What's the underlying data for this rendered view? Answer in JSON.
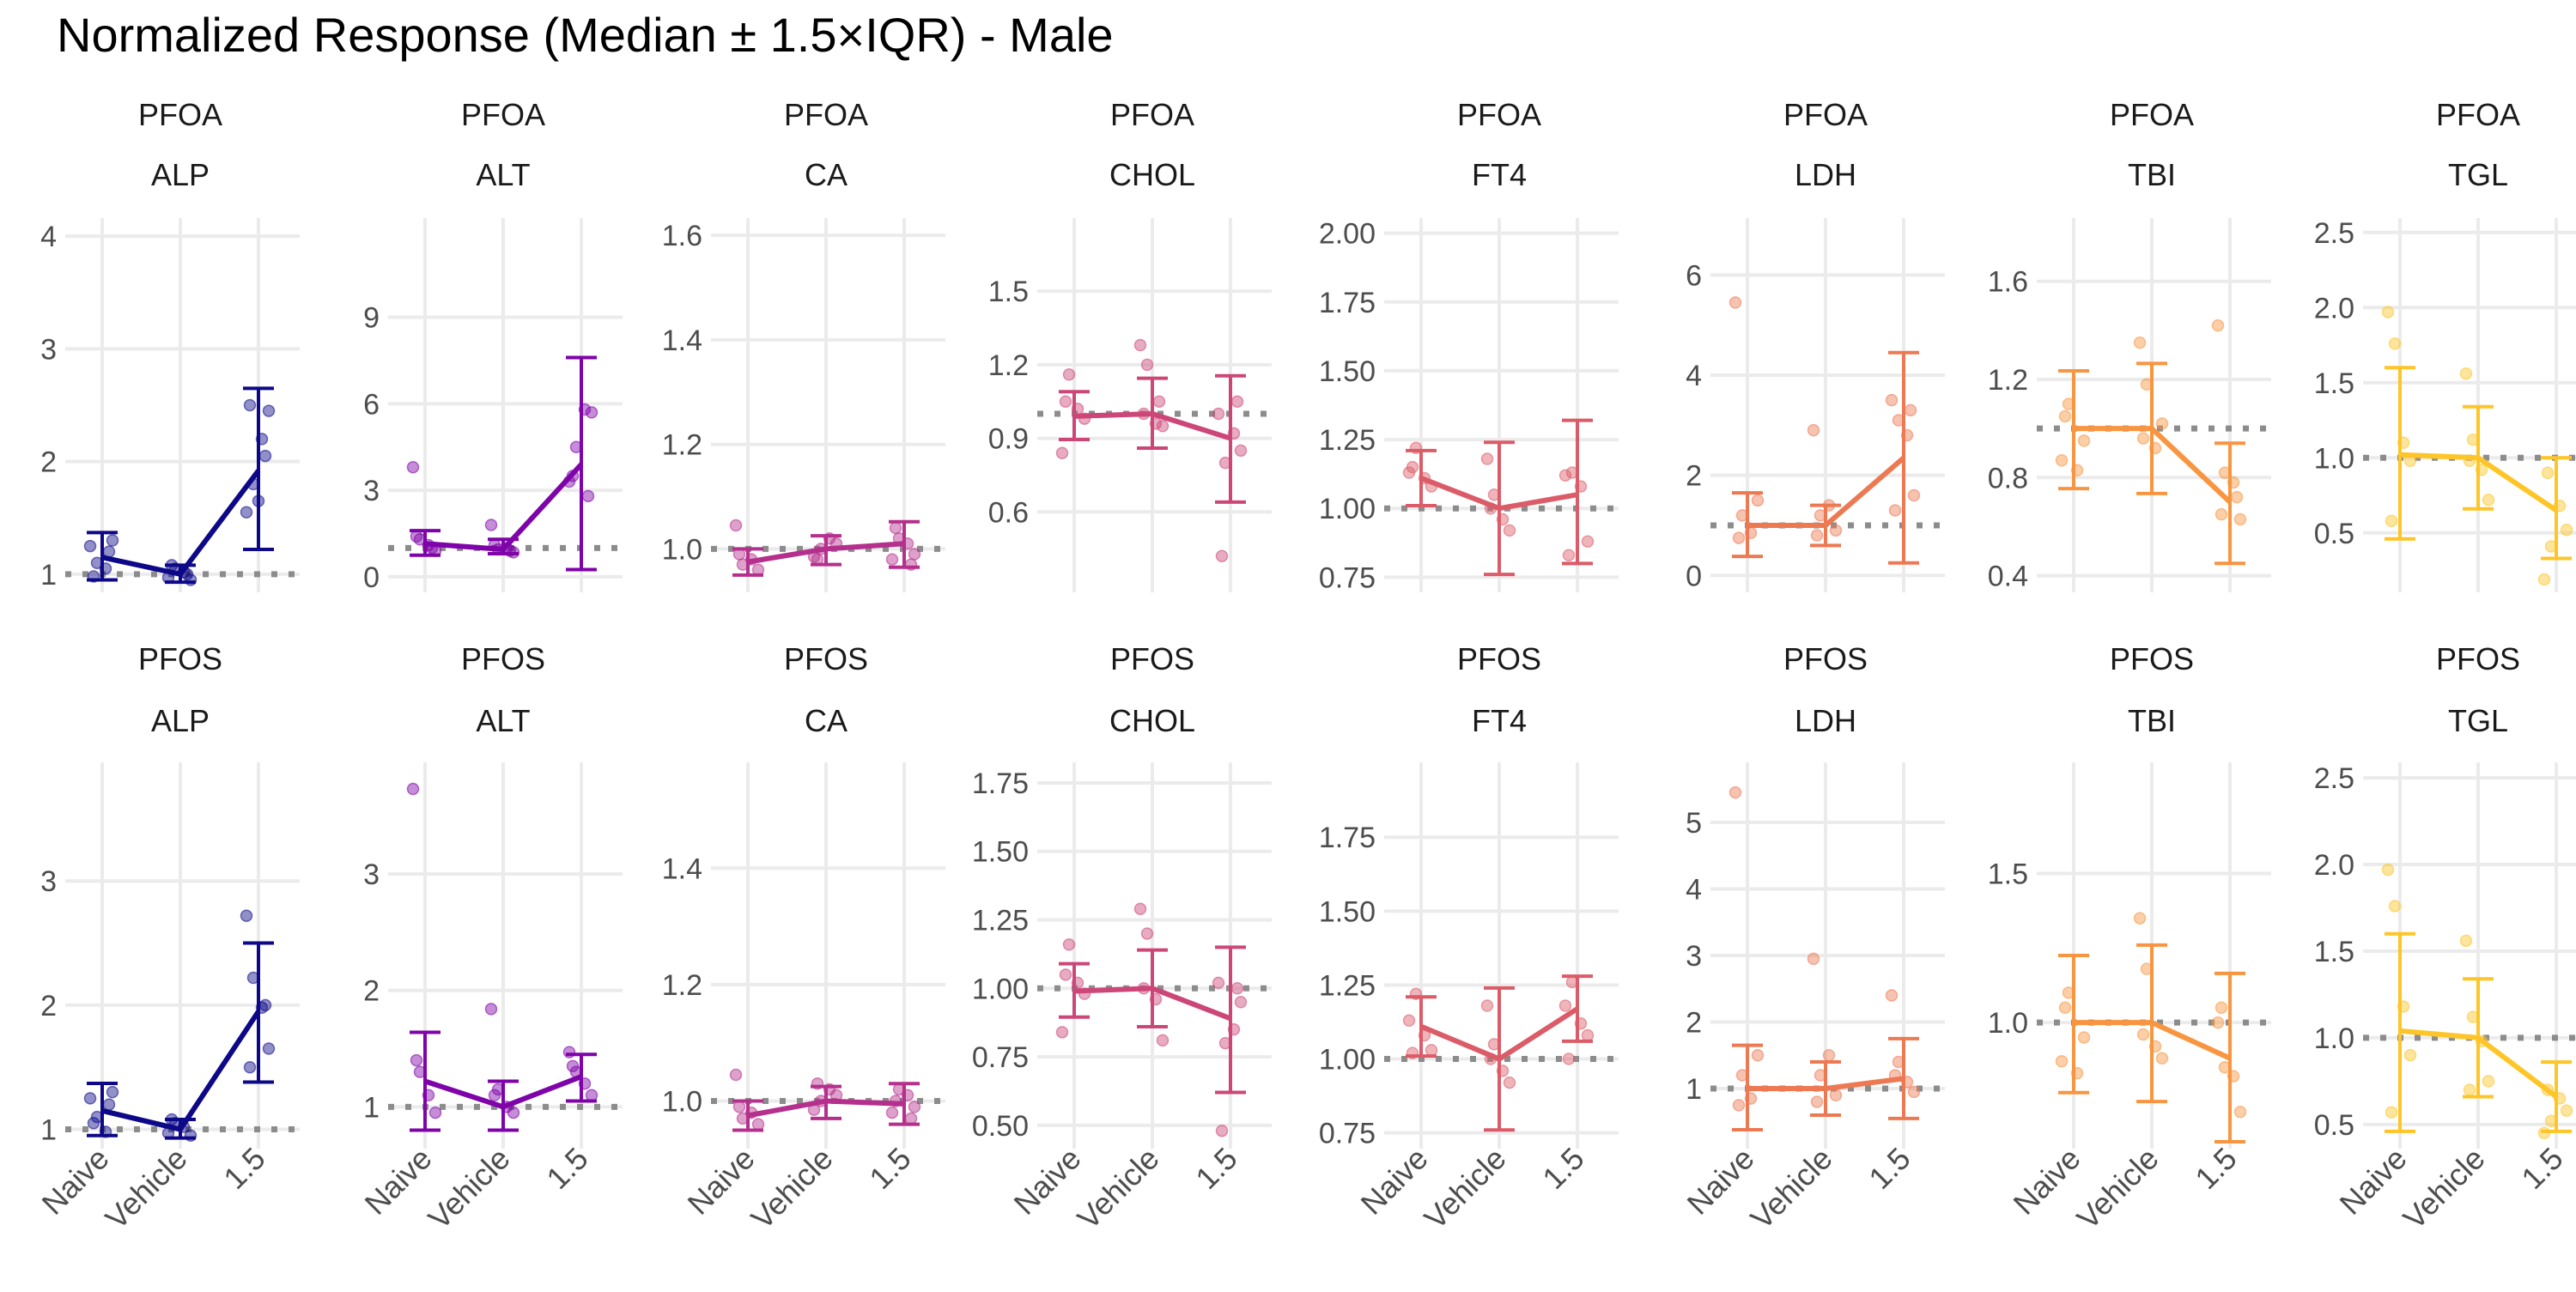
{
  "chart_data": {
    "type": "line",
    "title": "Normalized Response (Median ± 1.5×IQR) - Male",
    "x_categories": [
      "Naive",
      "Vehicle",
      "1.5"
    ],
    "reference_line": 1,
    "facet_rows": [
      "PFOA",
      "PFOS"
    ],
    "facet_cols": [
      "ALP",
      "ALT",
      "CA",
      "CHOL",
      "FT4",
      "LDH",
      "TBI",
      "TGL"
    ],
    "panels": [
      {
        "compound": "PFOA",
        "endpoint": "ALP",
        "color": "#0d0887",
        "ylim": [
          0.9,
          4.1
        ],
        "ticks": [
          1,
          2,
          3,
          4
        ],
        "tick_labels": [
          "1",
          "2",
          "3",
          "4"
        ],
        "median": [
          1.15,
          1.0,
          1.92
        ],
        "lower": [
          0.95,
          0.93,
          1.22
        ],
        "upper": [
          1.37,
          1.08,
          2.65
        ],
        "points": [
          [
            1.25,
            1.1,
            1.05,
            1.3,
            0.98,
            1.2
          ],
          [
            0.97,
            1.05,
            1.02,
            0.95,
            1.08,
            1.0
          ],
          [
            1.55,
            1.8,
            2.2,
            2.45,
            2.5,
            2.05,
            1.65
          ]
        ]
      },
      {
        "compound": "PFOA",
        "endpoint": "ALT",
        "color": "#7e03a8",
        "ylim": [
          -0.3,
          12.2
        ],
        "ticks": [
          0,
          3,
          6,
          9
        ],
        "tick_labels": [
          "0",
          "3",
          "6",
          "9"
        ],
        "median": [
          1.15,
          0.95,
          3.9
        ],
        "lower": [
          0.75,
          0.8,
          0.25
        ],
        "upper": [
          1.6,
          1.3,
          7.6
        ],
        "points": [
          [
            3.8,
            1.3,
            1.1,
            0.9,
            1.4,
            1.0
          ],
          [
            1.8,
            0.95,
            1.0,
            0.85,
            1.1,
            0.9
          ],
          [
            3.3,
            4.5,
            5.8,
            5.7,
            3.5,
            2.8
          ]
        ]
      },
      {
        "compound": "PFOA",
        "endpoint": "CA",
        "color": "#b52f8c",
        "ylim": [
          0.93,
          1.62
        ],
        "ticks": [
          1.0,
          1.2,
          1.4,
          1.6
        ],
        "tick_labels": [
          "1.0",
          "1.2",
          "1.4",
          "1.6"
        ],
        "median": [
          0.975,
          1.0,
          1.01
        ],
        "lower": [
          0.95,
          0.97,
          0.965
        ],
        "upper": [
          1.0,
          1.025,
          1.052
        ],
        "points": [
          [
            1.045,
            0.97,
            0.98,
            0.96,
            0.99
          ],
          [
            0.985,
            1.0,
            1.02,
            1.01,
            0.98
          ],
          [
            0.98,
            1.02,
            1.01,
            0.99,
            1.04,
            0.97
          ]
        ]
      },
      {
        "compound": "PFOA",
        "endpoint": "CHOL",
        "color": "#cc4778",
        "ylim": [
          0.3,
          1.77
        ],
        "ticks": [
          0.6,
          0.9,
          1.2,
          1.5
        ],
        "tick_labels": [
          "0.6",
          "0.9",
          "1.2",
          "1.5"
        ],
        "median": [
          0.99,
          1.0,
          0.9
        ],
        "lower": [
          0.895,
          0.86,
          0.64
        ],
        "upper": [
          1.09,
          1.145,
          1.155
        ],
        "points": [
          [
            0.84,
            1.16,
            1.02,
            0.98,
            1.05
          ],
          [
            1.28,
            1.2,
            0.96,
            0.95,
            1.0,
            1.05
          ],
          [
            1.0,
            0.8,
            0.92,
            0.85,
            0.42,
            1.05
          ]
        ]
      },
      {
        "compound": "PFOA",
        "endpoint": "FT4",
        "color": "#db5c68",
        "ylim": [
          0.72,
          2.03
        ],
        "ticks": [
          0.75,
          1.0,
          1.25,
          1.5,
          1.75,
          2.0
        ],
        "tick_labels": [
          "0.75",
          "1.00",
          "1.25",
          "1.50",
          "1.75",
          "2.00"
        ],
        "median": [
          1.11,
          1.0,
          1.05
        ],
        "lower": [
          1.01,
          0.76,
          0.8
        ],
        "upper": [
          1.21,
          1.24,
          1.32
        ],
        "points": [
          [
            1.13,
            1.22,
            1.11,
            1.08,
            1.15
          ],
          [
            1.18,
            1.05,
            0.96,
            0.92,
            1.0
          ],
          [
            1.12,
            1.13,
            1.08,
            0.88,
            0.83
          ]
        ]
      },
      {
        "compound": "PFOA",
        "endpoint": "LDH",
        "color": "#ed7953",
        "ylim": [
          -0.2,
          7.0
        ],
        "ticks": [
          0,
          2,
          4,
          6
        ],
        "tick_labels": [
          "0",
          "2",
          "4",
          "6"
        ],
        "median": [
          1.0,
          1.0,
          2.35
        ],
        "lower": [
          0.38,
          0.6,
          0.25
        ],
        "upper": [
          1.65,
          1.4,
          4.45
        ],
        "points": [
          [
            5.45,
            1.2,
            0.85,
            1.5,
            0.75
          ],
          [
            2.9,
            1.2,
            1.4,
            0.9,
            0.8
          ],
          [
            3.5,
            3.1,
            2.8,
            1.6,
            1.3,
            3.3
          ]
        ]
      },
      {
        "compound": "PFOA",
        "endpoint": "TBI",
        "color": "#f89540",
        "ylim": [
          0.36,
          1.83
        ],
        "ticks": [
          0.4,
          0.8,
          1.2,
          1.6
        ],
        "tick_labels": [
          "0.4",
          "0.8",
          "1.2",
          "1.6"
        ],
        "median": [
          1.0,
          1.0,
          0.7
        ],
        "lower": [
          0.755,
          0.735,
          0.45
        ],
        "upper": [
          1.235,
          1.265,
          0.94
        ],
        "points": [
          [
            0.87,
            1.1,
            0.83,
            0.95,
            1.05
          ],
          [
            1.35,
            1.18,
            0.92,
            1.02,
            0.96
          ],
          [
            1.42,
            0.82,
            0.78,
            0.63,
            0.65,
            0.72
          ]
        ]
      },
      {
        "compound": "PFOA",
        "endpoint": "TGL",
        "color": "#fdc527",
        "ylim": [
          0.15,
          2.55
        ],
        "ticks": [
          0.5,
          1.0,
          1.5,
          2.0,
          2.5
        ],
        "tick_labels": [
          "0.5",
          "1.0",
          "1.5",
          "2.0",
          "2.5"
        ],
        "median": [
          1.02,
          1.0,
          0.65
        ],
        "lower": [
          0.46,
          0.66,
          0.33
        ],
        "upper": [
          1.6,
          1.34,
          1.0
        ],
        "points": [
          [
            1.97,
            1.76,
            1.1,
            0.98,
            0.58
          ],
          [
            1.56,
            1.12,
            0.92,
            0.72,
            0.98
          ],
          [
            0.19,
            0.41,
            0.68,
            0.52,
            0.9
          ]
        ]
      },
      {
        "compound": "PFOS",
        "endpoint": "ALP",
        "color": "#0d0887",
        "ylim": [
          0.9,
          3.9
        ],
        "ticks": [
          1,
          2,
          3
        ],
        "tick_labels": [
          "1",
          "2",
          "3"
        ],
        "median": [
          1.15,
          1.0,
          1.95
        ],
        "lower": [
          0.95,
          0.93,
          1.38
        ],
        "upper": [
          1.37,
          1.08,
          2.5
        ],
        "points": [
          [
            1.25,
            1.1,
            0.98,
            1.3,
            1.05,
            1.2
          ],
          [
            0.97,
            1.05,
            1.02,
            0.95,
            1.08
          ],
          [
            2.72,
            2.22,
            1.98,
            1.65,
            1.5,
            2.0
          ]
        ]
      },
      {
        "compound": "PFOS",
        "endpoint": "ALT",
        "color": "#7e03a8",
        "ylim": [
          0.7,
          3.9
        ],
        "ticks": [
          1,
          2,
          3
        ],
        "tick_labels": [
          "1",
          "2",
          "3"
        ],
        "median": [
          1.22,
          1.0,
          1.26
        ],
        "lower": [
          0.8,
          0.8,
          1.05
        ],
        "upper": [
          1.64,
          1.22,
          1.45
        ],
        "points": [
          [
            3.73,
            1.3,
            1.1,
            0.95,
            1.4
          ],
          [
            1.84,
            1.15,
            1.0,
            0.95,
            1.1
          ],
          [
            1.47,
            1.3,
            1.2,
            1.1,
            1.35
          ]
        ]
      },
      {
        "compound": "PFOS",
        "endpoint": "CA",
        "color": "#b52f8c",
        "ylim": [
          0.93,
          1.57
        ],
        "ticks": [
          1.0,
          1.2,
          1.4
        ],
        "tick_labels": [
          "1.0",
          "1.2",
          "1.4"
        ],
        "median": [
          0.975,
          1.0,
          0.995
        ],
        "lower": [
          0.95,
          0.97,
          0.96
        ],
        "upper": [
          1.0,
          1.025,
          1.03
        ],
        "points": [
          [
            1.045,
            0.97,
            0.98,
            0.96,
            0.99
          ],
          [
            0.985,
            1.0,
            1.02,
            1.01,
            1.03
          ],
          [
            0.98,
            1.02,
            1.01,
            0.99,
            1.0,
            0.97
          ]
        ]
      },
      {
        "compound": "PFOS",
        "endpoint": "CHOL",
        "color": "#cc4778",
        "ylim": [
          0.44,
          1.8
        ],
        "ticks": [
          0.5,
          0.75,
          1.0,
          1.25,
          1.5,
          1.75
        ],
        "tick_labels": [
          "0.50",
          "0.75",
          "1.00",
          "1.25",
          "1.50",
          "1.75"
        ],
        "median": [
          0.99,
          1.0,
          0.89
        ],
        "lower": [
          0.895,
          0.86,
          0.62
        ],
        "upper": [
          1.09,
          1.14,
          1.15
        ],
        "points": [
          [
            0.84,
            1.16,
            1.02,
            0.98,
            1.05
          ],
          [
            1.29,
            1.2,
            0.96,
            0.81,
            1.0
          ],
          [
            1.02,
            0.8,
            0.85,
            0.95,
            0.48,
            1.0
          ]
        ]
      },
      {
        "compound": "PFOS",
        "endpoint": "FT4",
        "color": "#db5c68",
        "ylim": [
          0.72,
          1.98
        ],
        "ticks": [
          0.75,
          1.0,
          1.25,
          1.5,
          1.75
        ],
        "tick_labels": [
          "0.75",
          "1.00",
          "1.25",
          "1.50",
          "1.75"
        ],
        "median": [
          1.11,
          1.0,
          1.17
        ],
        "lower": [
          1.01,
          0.76,
          1.06
        ],
        "upper": [
          1.21,
          1.24,
          1.28
        ],
        "points": [
          [
            1.13,
            1.22,
            1.08,
            1.03,
            1.02
          ],
          [
            1.18,
            1.05,
            0.96,
            0.92,
            1.0
          ],
          [
            1.18,
            1.26,
            1.12,
            1.08,
            1.0
          ]
        ]
      },
      {
        "compound": "PFOS",
        "endpoint": "LDH",
        "color": "#ed7953",
        "ylim": [
          0.2,
          5.8
        ],
        "ticks": [
          1,
          2,
          3,
          4,
          5
        ],
        "tick_labels": [
          "1",
          "2",
          "3",
          "4",
          "5"
        ],
        "median": [
          1.0,
          1.0,
          1.15
        ],
        "lower": [
          0.38,
          0.6,
          0.55
        ],
        "upper": [
          1.65,
          1.4,
          1.75
        ],
        "points": [
          [
            5.45,
            1.2,
            0.85,
            1.5,
            0.75
          ],
          [
            2.95,
            1.2,
            1.5,
            0.9,
            0.8
          ],
          [
            2.4,
            1.4,
            1.1,
            0.95,
            1.2
          ]
        ]
      },
      {
        "compound": "PFOS",
        "endpoint": "TBI",
        "color": "#f89540",
        "ylim": [
          0.6,
          1.85
        ],
        "ticks": [
          1.0,
          1.5
        ],
        "tick_labels": [
          "1.0",
          "1.5"
        ],
        "median": [
          1.0,
          1.0,
          0.88
        ],
        "lower": [
          0.765,
          0.735,
          0.6
        ],
        "upper": [
          1.225,
          1.26,
          1.165
        ],
        "points": [
          [
            0.87,
            1.1,
            0.83,
            0.95,
            1.05
          ],
          [
            1.35,
            1.18,
            0.92,
            0.88,
            0.96
          ],
          [
            1.0,
            0.85,
            0.82,
            0.7,
            1.05
          ]
        ]
      },
      {
        "compound": "PFOS",
        "endpoint": "TGL",
        "color": "#fdc527",
        "ylim": [
          0.4,
          2.55
        ],
        "ticks": [
          0.5,
          1.0,
          1.5,
          2.0,
          2.5
        ],
        "tick_labels": [
          "0.5",
          "1.0",
          "1.5",
          "2.0",
          "2.5"
        ],
        "median": [
          1.04,
          1.0,
          0.66
        ],
        "lower": [
          0.46,
          0.66,
          0.46
        ],
        "upper": [
          1.6,
          1.34,
          0.86
        ],
        "points": [
          [
            1.97,
            1.76,
            1.18,
            0.9,
            0.57
          ],
          [
            1.56,
            1.12,
            0.98,
            0.75,
            0.7
          ],
          [
            0.45,
            0.52,
            0.65,
            0.58,
            0.7
          ]
        ]
      }
    ]
  }
}
